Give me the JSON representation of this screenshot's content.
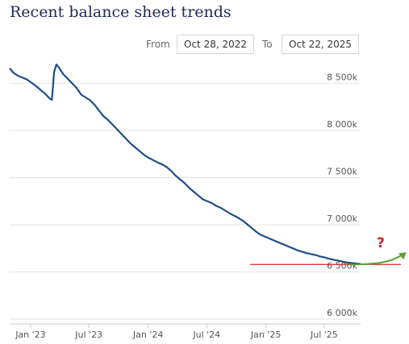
{
  "title": "Recent balance sheet trends",
  "range": {
    "from_label": "From",
    "from_value": "Oct 28, 2022",
    "to_label": "To",
    "to_value": "Oct 22, 2025"
  },
  "annotation": {
    "question_mark": "?",
    "baseline_color": "#cc2a2a",
    "arrow_color": "#5aa030"
  },
  "chart_data": {
    "type": "line",
    "title": "Recent balance sheet trends",
    "xlabel": "",
    "ylabel": "",
    "x_ticks": [
      "Jan '23",
      "Jul '23",
      "Jan '24",
      "Jul '24",
      "Jan '25",
      "Jul '25"
    ],
    "y_ticks": [
      "6 000k",
      "6 500k",
      "7 000k",
      "7 500k",
      "8 000k",
      "8 500k"
    ],
    "ylim": [
      5950,
      8700
    ],
    "xlim": [
      "2022-10-28",
      "2025-10-22"
    ],
    "grid": true,
    "line_color": "#1f4e8a",
    "series": [
      {
        "values": [
          [
            "2022-10-28",
            8660
          ],
          [
            "2022-11-09",
            8610
          ],
          [
            "2022-11-23",
            8580
          ],
          [
            "2022-12-07",
            8560
          ],
          [
            "2022-12-21",
            8540
          ],
          [
            "2023-01-04",
            8505
          ],
          [
            "2023-01-18",
            8470
          ],
          [
            "2023-02-01",
            8430
          ],
          [
            "2023-02-15",
            8390
          ],
          [
            "2023-03-01",
            8340
          ],
          [
            "2023-03-08",
            8325
          ],
          [
            "2023-03-15",
            8620
          ],
          [
            "2023-03-22",
            8700
          ],
          [
            "2023-03-29",
            8670
          ],
          [
            "2023-04-12",
            8600
          ],
          [
            "2023-04-26",
            8550
          ],
          [
            "2023-05-10",
            8500
          ],
          [
            "2023-05-24",
            8450
          ],
          [
            "2023-06-07",
            8380
          ],
          [
            "2023-06-21",
            8350
          ],
          [
            "2023-07-05",
            8320
          ],
          [
            "2023-07-19",
            8270
          ],
          [
            "2023-08-02",
            8210
          ],
          [
            "2023-08-16",
            8150
          ],
          [
            "2023-08-30",
            8110
          ],
          [
            "2023-09-13",
            8060
          ],
          [
            "2023-09-27",
            8010
          ],
          [
            "2023-10-11",
            7960
          ],
          [
            "2023-10-25",
            7910
          ],
          [
            "2023-11-08",
            7860
          ],
          [
            "2023-11-22",
            7820
          ],
          [
            "2023-12-06",
            7780
          ],
          [
            "2023-12-20",
            7740
          ],
          [
            "2024-01-03",
            7710
          ],
          [
            "2024-01-17",
            7685
          ],
          [
            "2024-01-31",
            7660
          ],
          [
            "2024-02-14",
            7640
          ],
          [
            "2024-02-28",
            7610
          ],
          [
            "2024-03-13",
            7570
          ],
          [
            "2024-03-27",
            7520
          ],
          [
            "2024-04-10",
            7480
          ],
          [
            "2024-04-24",
            7440
          ],
          [
            "2024-05-08",
            7390
          ],
          [
            "2024-05-22",
            7350
          ],
          [
            "2024-06-05",
            7310
          ],
          [
            "2024-06-19",
            7270
          ],
          [
            "2024-07-03",
            7250
          ],
          [
            "2024-07-17",
            7230
          ],
          [
            "2024-07-31",
            7200
          ],
          [
            "2024-08-14",
            7180
          ],
          [
            "2024-08-28",
            7150
          ],
          [
            "2024-09-11",
            7120
          ],
          [
            "2024-09-25",
            7095
          ],
          [
            "2024-10-09",
            7070
          ],
          [
            "2024-10-23",
            7040
          ],
          [
            "2024-11-06",
            7000
          ],
          [
            "2024-11-20",
            6960
          ],
          [
            "2024-12-04",
            6920
          ],
          [
            "2024-12-18",
            6890
          ],
          [
            "2025-01-01",
            6870
          ],
          [
            "2025-01-15",
            6850
          ],
          [
            "2025-01-29",
            6830
          ],
          [
            "2025-02-12",
            6810
          ],
          [
            "2025-02-26",
            6790
          ],
          [
            "2025-03-12",
            6770
          ],
          [
            "2025-03-26",
            6750
          ],
          [
            "2025-04-09",
            6730
          ],
          [
            "2025-04-23",
            6715
          ],
          [
            "2025-05-07",
            6700
          ],
          [
            "2025-05-21",
            6690
          ],
          [
            "2025-06-04",
            6680
          ],
          [
            "2025-06-18",
            6665
          ],
          [
            "2025-07-02",
            6655
          ],
          [
            "2025-07-16",
            6640
          ],
          [
            "2025-07-30",
            6630
          ],
          [
            "2025-08-13",
            6620
          ],
          [
            "2025-08-27",
            6610
          ],
          [
            "2025-09-10",
            6600
          ],
          [
            "2025-09-24",
            6595
          ],
          [
            "2025-10-08",
            6590
          ],
          [
            "2025-10-22",
            6585
          ]
        ]
      }
    ],
    "reference_line": {
      "value": 6580,
      "from": "2024-11-13",
      "to": "2025-10-22"
    }
  }
}
